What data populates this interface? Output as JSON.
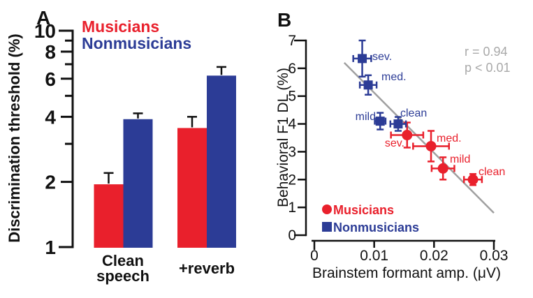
{
  "figure": {
    "panels": [
      {
        "id": "A",
        "label": "A"
      },
      {
        "id": "B",
        "label": "B"
      }
    ]
  },
  "colors": {
    "musicians_red": "#e9202c",
    "nonmusicians_blue": "#2c3c96",
    "fit_line_gray": "#a0a0a0",
    "stats_text_gray": "#a9a9a9",
    "axis_black": "#111111"
  },
  "chart_data": [
    {
      "type": "bar",
      "panel": "A",
      "ylabel": "Discrimination threshold (%)",
      "yscale": "log",
      "ylim": [
        1,
        10
      ],
      "yticks_labeled": [
        10,
        8,
        6,
        4,
        2,
        1
      ],
      "yticks_minor": [
        3,
        5,
        7,
        9
      ],
      "categories": [
        "Clean speech",
        "+reverb"
      ],
      "categories_display": [
        [
          "Clean",
          "speech"
        ],
        [
          "+reverb"
        ]
      ],
      "legend_position": "top",
      "grid": false,
      "series": [
        {
          "name": "Musicians",
          "color": "#e9202c",
          "values": [
            1.95,
            3.55
          ],
          "error_tops": [
            2.2,
            4.0
          ]
        },
        {
          "name": "Nonmusicians",
          "color": "#2c3c96",
          "values": [
            3.9,
            6.2
          ],
          "error_tops": [
            4.15,
            6.8
          ]
        }
      ]
    },
    {
      "type": "scatter",
      "panel": "B",
      "xlabel": "Brainstem formant amp. (μV)",
      "ylabel": "Behavioral F1 DL (%)",
      "xlim": [
        0,
        0.03
      ],
      "ylim": [
        0,
        7
      ],
      "xticks": [
        0,
        0.01,
        0.02,
        0.03
      ],
      "xtick_labels": [
        "0",
        "0.01",
        "0.02",
        "0.03"
      ],
      "yticks": [
        0,
        1,
        2,
        3,
        4,
        5,
        6,
        7
      ],
      "ytick_labels": [
        "0",
        "1",
        "2",
        "3",
        "4",
        "5",
        "6",
        "7"
      ],
      "grid": false,
      "fit_line": {
        "x1": 0.005,
        "y1": 6.2,
        "x2": 0.03,
        "y2": 0.8
      },
      "stats": {
        "r_text": "r = 0.94",
        "p_text": "p < 0.01"
      },
      "legend_position": "bottom-left",
      "series": [
        {
          "name": "Musicians",
          "marker": "circle",
          "color": "#e9202c",
          "points": [
            {
              "label": "sev.",
              "x": 0.0155,
              "y": 3.6,
              "xerr": 0.0027,
              "yerr": 0.45
            },
            {
              "label": "med.",
              "x": 0.0195,
              "y": 3.2,
              "xerr": 0.003,
              "yerr": 0.55
            },
            {
              "label": "mild",
              "x": 0.0215,
              "y": 2.4,
              "xerr": 0.0019,
              "yerr": 0.4
            },
            {
              "label": "clean",
              "x": 0.0265,
              "y": 2.0,
              "xerr": 0.0015,
              "yerr": 0.2
            }
          ]
        },
        {
          "name": "Nonmusicians",
          "marker": "square",
          "color": "#2c3c96",
          "points": [
            {
              "label": "sev.",
              "x": 0.008,
              "y": 6.35,
              "xerr": 0.0015,
              "yerr": 0.65
            },
            {
              "label": "med.",
              "x": 0.009,
              "y": 5.4,
              "xerr": 0.0014,
              "yerr": 0.35
            },
            {
              "label": "mild",
              "x": 0.011,
              "y": 4.1,
              "xerr": 0.0009,
              "yerr": 0.3
            },
            {
              "label": "clean",
              "x": 0.014,
              "y": 4.0,
              "xerr": 0.0013,
              "yerr": 0.25
            }
          ]
        }
      ]
    }
  ]
}
